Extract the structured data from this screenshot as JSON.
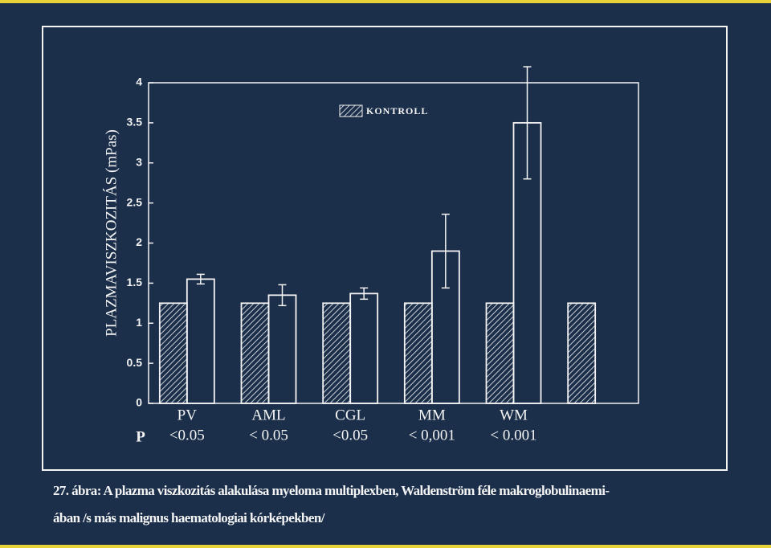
{
  "chart_data": {
    "type": "bar",
    "y_label": "PLAZMAVISZKOZITÁS (mPas)",
    "categories": [
      "PV",
      "AML",
      "CGL",
      "MM",
      "WM",
      null
    ],
    "p_label": "P",
    "p_values": [
      "<0.05",
      "< 0.05",
      "<0.05",
      "< 0,001",
      "< 0.001"
    ],
    "series": [
      {
        "name": "KONTROLL",
        "color": "#f4f4f4",
        "pattern": "hatched",
        "values": [
          1.25,
          1.25,
          1.25,
          1.25,
          1.25,
          1.25
        ]
      },
      {
        "color": "#f4f4f4",
        "values": [
          1.55,
          1.35,
          1.37,
          1.9,
          3.5,
          null
        ],
        "errors": [
          0.06,
          0.13,
          0.07,
          0.46,
          0.7,
          null
        ]
      }
    ],
    "ylim": [
      0,
      4
    ],
    "yticks": [
      0,
      0.5,
      1,
      1.5,
      2,
      2.5,
      3,
      3.5,
      4
    ],
    "caption_label": "27. ábra:",
    "caption_lines": [
      "A plazma viszkozitás alakulása myeloma multiplexben, Waldenström féle makroglobulinaemi-",
      "ában /s más malignus haematologiai kórképekben/"
    ]
  }
}
